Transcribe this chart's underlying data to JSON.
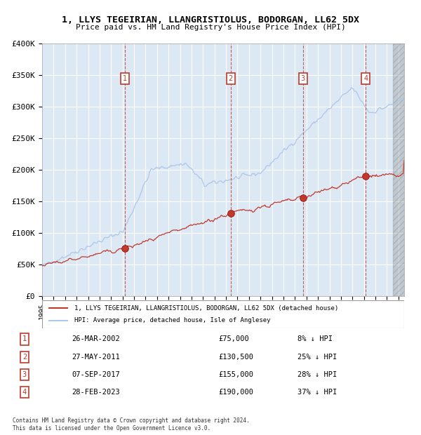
{
  "title": "1, LLYS TEGEIRIAN, LLANGRISTIOLUS, BODORGAN, LL62 5DX",
  "subtitle": "Price paid vs. HM Land Registry's House Price Index (HPI)",
  "hpi_color": "#aec6e8",
  "price_color": "#c0392b",
  "background_color": "#dce9f5",
  "plot_bg": "#dce9f5",
  "grid_color": "#ffffff",
  "ylim": [
    0,
    400000
  ],
  "yticks": [
    0,
    50000,
    100000,
    150000,
    200000,
    250000,
    300000,
    350000,
    400000
  ],
  "ytick_labels": [
    "£0",
    "£50K",
    "£100K",
    "£150K",
    "£200K",
    "£250K",
    "£300K",
    "£350K",
    "£400K"
  ],
  "sale_dates": [
    "26-MAR-2002",
    "27-MAY-2011",
    "07-SEP-2017",
    "28-FEB-2023"
  ],
  "sale_prices": [
    75000,
    130500,
    155000,
    190000
  ],
  "sale_years": [
    2002.23,
    2011.41,
    2017.69,
    2023.16
  ],
  "sale_hpi_pct": [
    "8% ↓ HPI",
    "25% ↓ HPI",
    "28% ↓ HPI",
    "37% ↓ HPI"
  ],
  "legend_property": "1, LLYS TEGEIRIAN, LLANGRISTIOLUS, BODORGAN, LL62 5DX (detached house)",
  "legend_hpi": "HPI: Average price, detached house, Isle of Anglesey",
  "footnote1": "Contains HM Land Registry data © Crown copyright and database right 2024.",
  "footnote2": "This data is licensed under the Open Government Licence v3.0.",
  "xmin": 1995.0,
  "xmax": 2026.5
}
